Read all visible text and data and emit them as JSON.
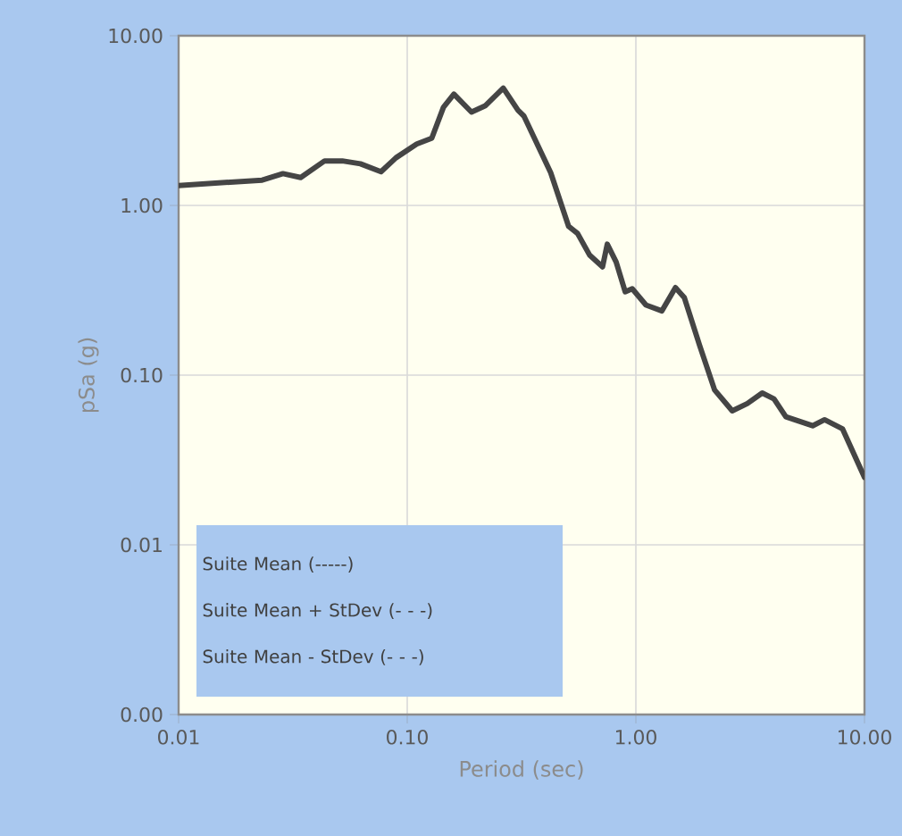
{
  "chart_data": {
    "type": "line",
    "xlabel": "Period (sec)",
    "ylabel": "pSa (g)",
    "x": [
      0.01,
      0.0232,
      0.0286,
      0.0342,
      0.0435,
      0.052,
      0.0624,
      0.0768,
      0.0893,
      0.11,
      0.128,
      0.144,
      0.16,
      0.191,
      0.219,
      0.263,
      0.305,
      0.324,
      0.424,
      0.508,
      0.556,
      0.627,
      0.715,
      0.75,
      0.82,
      0.898,
      0.964,
      1.107,
      1.3,
      1.49,
      1.63,
      1.9,
      2.21,
      2.64,
      3.07,
      3.57,
      4.02,
      4.53,
      5.93,
      6.69,
      8.01,
      10
    ],
    "series": [
      {
        "color": "#454545",
        "values": [
          1.31,
          1.41,
          1.54,
          1.46,
          1.83,
          1.83,
          1.76,
          1.58,
          1.91,
          2.3,
          2.49,
          3.79,
          4.53,
          3.55,
          3.86,
          4.91,
          3.64,
          3.36,
          1.56,
          0.753,
          0.684,
          0.511,
          0.435,
          0.591,
          0.464,
          0.31,
          0.323,
          0.259,
          0.239,
          0.328,
          0.286,
          0.15,
          0.0818,
          0.0616,
          0.068,
          0.0785,
          0.0724,
          0.0568,
          0.0503,
          0.0546,
          0.0483,
          0.025
        ]
      }
    ],
    "xlim": [
      0.01,
      10
    ],
    "ylim": [
      0.001,
      10
    ],
    "xticks": [
      {
        "value": 0.01,
        "label": "0.01"
      },
      {
        "value": 0.1,
        "label": "0.10"
      },
      {
        "value": 1,
        "label": "1.00"
      },
      {
        "value": 10,
        "label": "10.00"
      }
    ],
    "yticks": [
      {
        "value": 0.001,
        "label": "0.00"
      },
      {
        "value": 0.01,
        "label": "0.01"
      },
      {
        "value": 0.1,
        "label": "0.10"
      },
      {
        "value": 1,
        "label": "1.00"
      },
      {
        "value": 10,
        "label": "10.00"
      }
    ],
    "log": "xy",
    "grid": true,
    "line_style": "solid",
    "annotations": [
      "Suite Mean (-----)",
      "Suite Mean + StDev (- - -)",
      "Suite Mean - StDev (- - -)"
    ]
  }
}
